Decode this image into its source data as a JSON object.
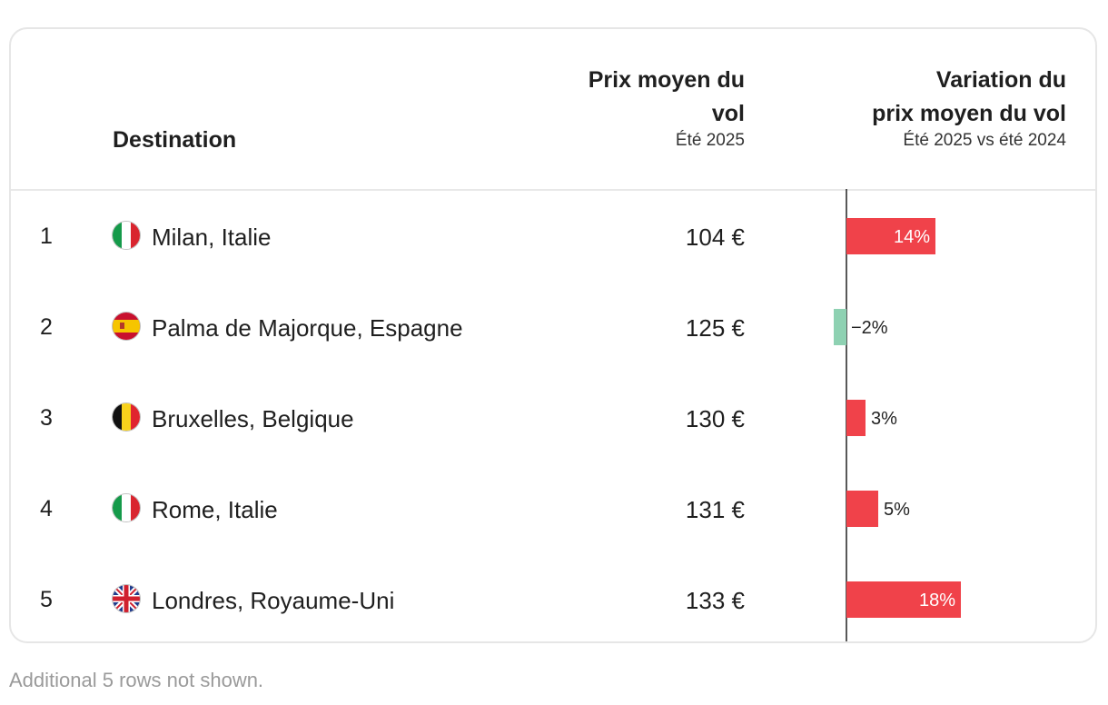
{
  "header": {
    "destination": "Destination",
    "price_title_line1": "Prix moyen du",
    "price_title_line2": "vol",
    "price_subtitle": "Été 2025",
    "variation_title_line1": "Variation du",
    "variation_title_line2": "prix moyen du vol",
    "variation_subtitle": "Été 2025 vs été 2024"
  },
  "rows": [
    {
      "rank": "1",
      "flag": "italy-flag-icon",
      "destination": "Milan, Italie",
      "price": "104 €"
    },
    {
      "rank": "2",
      "flag": "spain-flag-icon",
      "destination": "Palma de Majorque, Espagne",
      "price": "125 €"
    },
    {
      "rank": "3",
      "flag": "belgium-flag-icon",
      "destination": "Bruxelles, Belgique",
      "price": "130 €"
    },
    {
      "rank": "4",
      "flag": "italy-flag-icon",
      "destination": "Rome, Italie",
      "price": "131 €"
    },
    {
      "rank": "5",
      "flag": "uk-flag-icon",
      "destination": "Londres, Royaume-Uni",
      "price": "133 €"
    }
  ],
  "chart_data": {
    "type": "bar",
    "categories": [
      "Milan, Italie",
      "Palma de Majorque, Espagne",
      "Bruxelles, Belgique",
      "Rome, Italie",
      "Londres, Royaume-Uni"
    ],
    "values": [
      14,
      -2,
      3,
      5,
      18
    ],
    "labels": [
      "14%",
      "−2%",
      "3%",
      "5%",
      "18%"
    ],
    "unit": "%",
    "colors": {
      "positive": "#f0424a",
      "negative": "#8ed1b2",
      "axis": "#222222"
    }
  },
  "footnote": "Additional 5 rows not shown."
}
